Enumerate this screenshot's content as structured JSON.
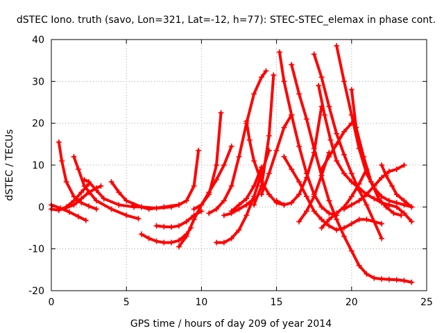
{
  "chart_data": {
    "type": "scatter",
    "title": "dSTEC Iono. truth (savo, Lon=321, Lat=-12, h=77): STEC-STEC_elemax in phase cont.",
    "xlabel": "GPS time / hours of day 209 of year 2014",
    "ylabel": "dSTEC  / TECUs",
    "xlim": [
      0,
      25
    ],
    "ylim": [
      -20,
      40
    ],
    "xticks": [
      "0",
      "5",
      "10",
      "15",
      "20",
      "25"
    ],
    "yticks": [
      "-20",
      "-10",
      "0",
      "10",
      "20",
      "30",
      "40"
    ],
    "grid": true,
    "marker": "+",
    "color": "#ff0000",
    "series": [
      {
        "x": [
          0.0,
          0.6,
          1.2,
          1.8,
          2.3
        ],
        "y": [
          0.5,
          -0.3,
          -1.2,
          -2.3,
          -3.2
        ]
      },
      {
        "x": [
          0.0,
          0.5,
          1.0,
          1.5,
          2.0,
          2.5
        ],
        "y": [
          -0.5,
          -0.8,
          0.0,
          1.5,
          3.5,
          5.5
        ]
      },
      {
        "x": [
          0.5,
          0.7,
          1.0,
          1.5,
          2.0,
          2.5,
          3.0
        ],
        "y": [
          15.5,
          11.0,
          6.0,
          2.5,
          1.0,
          0.2,
          -0.5
        ]
      },
      {
        "x": [
          1.5,
          1.8,
          2.2,
          3.0,
          4.0,
          5.0,
          5.8
        ],
        "y": [
          12.0,
          9.0,
          5.0,
          1.5,
          -0.5,
          -2.0,
          -2.8
        ]
      },
      {
        "x": [
          0.5,
          1.0,
          1.5,
          2.0,
          2.5,
          3.0,
          3.3
        ],
        "y": [
          -0.5,
          -0.2,
          0.5,
          2.0,
          3.5,
          4.5,
          5.0
        ]
      },
      {
        "x": [
          2.2,
          2.5,
          3.0,
          3.5,
          4.5,
          5.5,
          6.0
        ],
        "y": [
          6.5,
          6.0,
          4.0,
          2.0,
          0.5,
          0.0,
          0.0
        ]
      },
      {
        "x": [
          4.0,
          4.5,
          5.0,
          6.0,
          7.0,
          8.0,
          8.5
        ],
        "y": [
          6.0,
          3.5,
          1.5,
          0.0,
          -0.3,
          0.0,
          0.5
        ]
      },
      {
        "x": [
          6.0,
          6.5,
          7.0,
          7.5,
          8.0,
          8.5,
          9.0,
          9.3
        ],
        "y": [
          -6.5,
          -7.5,
          -8.2,
          -8.5,
          -8.5,
          -8.0,
          -6.5,
          -5.0
        ]
      },
      {
        "x": [
          7.0,
          7.5,
          8.0,
          8.5,
          9.0,
          9.5,
          10.0
        ],
        "y": [
          -4.5,
          -4.7,
          -4.8,
          -4.5,
          -3.5,
          -2.0,
          -1.0
        ]
      },
      {
        "x": [
          5.5,
          6.5,
          7.5,
          8.5,
          9.0,
          9.5,
          9.8
        ],
        "y": [
          0.5,
          -0.5,
          0.0,
          0.5,
          1.5,
          5.0,
          13.5
        ]
      },
      {
        "x": [
          8.5,
          9.0,
          9.5,
          10.0,
          10.5,
          11.0,
          11.5,
          12.0
        ],
        "y": [
          -9.5,
          -7.0,
          -3.0,
          0.5,
          3.5,
          6.5,
          10.0,
          14.5
        ]
      },
      {
        "x": [
          9.5,
          10.0,
          10.5,
          11.0,
          11.3
        ],
        "y": [
          -0.5,
          0.5,
          3.0,
          10.0,
          22.5
        ]
      },
      {
        "x": [
          10.5,
          11.0,
          11.5,
          12.0,
          12.5,
          13.0,
          13.5,
          14.0,
          14.3
        ],
        "y": [
          -1.5,
          -0.5,
          1.5,
          5.0,
          12.0,
          20.0,
          27.0,
          31.0,
          32.5
        ]
      },
      {
        "x": [
          11.0,
          11.5,
          12.0,
          12.5,
          13.0,
          13.5,
          14.0,
          14.5
        ],
        "y": [
          -8.5,
          -8.5,
          -7.5,
          -5.5,
          -2.0,
          2.5,
          8.0,
          13.5
        ]
      },
      {
        "x": [
          11.5,
          12.0,
          12.5,
          13.0,
          13.5
        ],
        "y": [
          -2.0,
          -1.5,
          -0.5,
          0.5,
          2.0
        ]
      },
      {
        "x": [
          12.0,
          12.5,
          13.0,
          13.5,
          14.0
        ],
        "y": [
          -1.0,
          0.5,
          2.0,
          5.0,
          9.5
        ]
      },
      {
        "x": [
          13.0,
          13.2,
          13.5,
          14.0,
          14.5,
          15.0,
          15.5
        ],
        "y": [
          20.5,
          16.0,
          11.0,
          6.0,
          3.0,
          1.0,
          0.5
        ]
      },
      {
        "x": [
          13.5,
          14.0,
          14.5,
          14.8
        ],
        "y": [
          0.5,
          5.0,
          17.0,
          31.5
        ]
      },
      {
        "x": [
          14.0,
          14.5,
          15.0,
          15.5,
          16.0
        ],
        "y": [
          3.0,
          8.0,
          13.5,
          19.0,
          22.0
        ]
      },
      {
        "x": [
          15.2,
          15.5,
          16.0,
          16.5,
          17.0,
          17.5,
          18.0,
          18.5,
          19.0
        ],
        "y": [
          37.0,
          30.0,
          22.0,
          14.5,
          8.0,
          3.0,
          0.0,
          -1.5,
          -2.0
        ]
      },
      {
        "x": [
          15.0,
          15.5,
          16.0,
          16.5,
          17.0,
          17.5,
          18.0
        ],
        "y": [
          1.5,
          0.5,
          1.0,
          3.0,
          7.0,
          13.0,
          24.0
        ]
      },
      {
        "x": [
          15.5,
          16.0,
          16.5,
          17.0,
          17.5,
          18.0,
          18.5,
          19.0,
          19.5,
          20.0,
          20.5,
          21.0,
          21.5,
          22.0
        ],
        "y": [
          12.0,
          9.0,
          6.0,
          2.5,
          -1.0,
          -3.0,
          -4.5,
          -5.5,
          -5.0,
          -4.0,
          -3.0,
          -3.0,
          -3.5,
          -4.0
        ]
      },
      {
        "x": [
          16.0,
          16.5,
          17.0,
          17.5,
          18.0,
          18.5,
          19.0,
          19.5,
          20.0,
          20.5,
          21.0,
          21.5,
          22.0,
          22.5,
          23.0,
          23.5,
          24.0
        ],
        "y": [
          34.0,
          27.0,
          21.0,
          14.0,
          7.5,
          1.5,
          -3.0,
          -7.0,
          -10.5,
          -14.0,
          -16.0,
          -17.0,
          -17.2,
          -17.3,
          -17.4,
          -17.6,
          -18.0
        ]
      },
      {
        "x": [
          16.5,
          17.0,
          17.5,
          18.0,
          18.5
        ],
        "y": [
          -3.5,
          -1.0,
          2.5,
          7.5,
          13.0
        ]
      },
      {
        "x": [
          17.5,
          18.0,
          18.5,
          19.0,
          19.5,
          20.0,
          20.5,
          21.0,
          21.5,
          22.0
        ],
        "y": [
          36.5,
          31.0,
          24.0,
          17.5,
          12.5,
          8.0,
          4.0,
          0.5,
          -3.5,
          -7.5
        ]
      },
      {
        "x": [
          17.8,
          18.2,
          18.6,
          19.0,
          19.5,
          20.0,
          20.5,
          21.0,
          21.5,
          22.0,
          22.5,
          23.0,
          23.5,
          24.0
        ],
        "y": [
          29.0,
          22.0,
          16.0,
          11.0,
          8.0,
          6.0,
          4.5,
          3.0,
          2.0,
          1.0,
          0.5,
          0.0,
          -1.5,
          -3.5
        ]
      },
      {
        "x": [
          18.0,
          18.5,
          19.0,
          19.5,
          20.0
        ],
        "y": [
          9.0,
          12.0,
          15.0,
          18.0,
          20.0
        ]
      },
      {
        "x": [
          18.0,
          18.5,
          19.0,
          19.5,
          20.0,
          20.5,
          21.0
        ],
        "y": [
          -5.0,
          -3.0,
          -1.5,
          0.0,
          2.5,
          5.5,
          9.0
        ]
      },
      {
        "x": [
          19.0,
          19.5,
          20.0,
          20.5,
          21.0,
          21.5,
          22.0,
          22.5,
          23.0,
          23.5,
          24.0
        ],
        "y": [
          38.5,
          30.0,
          22.0,
          14.0,
          8.0,
          4.5,
          2.5,
          1.5,
          1.0,
          0.5,
          0.0
        ]
      },
      {
        "x": [
          19.5,
          20.0,
          20.5,
          21.0,
          21.5,
          22.0,
          22.5,
          23.0,
          23.5
        ],
        "y": [
          -0.5,
          0.5,
          1.5,
          3.0,
          5.0,
          7.0,
          8.5,
          9.0,
          10.0
        ]
      },
      {
        "x": [
          20.0,
          20.3,
          20.8,
          21.3,
          21.8,
          22.3,
          22.8,
          23.3
        ],
        "y": [
          28.0,
          19.0,
          12.0,
          6.0,
          2.0,
          0.0,
          -1.5,
          -2.0
        ]
      },
      {
        "x": [
          22.0,
          22.3,
          22.7,
          23.0,
          23.5,
          24.0
        ],
        "y": [
          10.0,
          7.5,
          5.0,
          3.0,
          1.5,
          0.0
        ]
      }
    ]
  }
}
